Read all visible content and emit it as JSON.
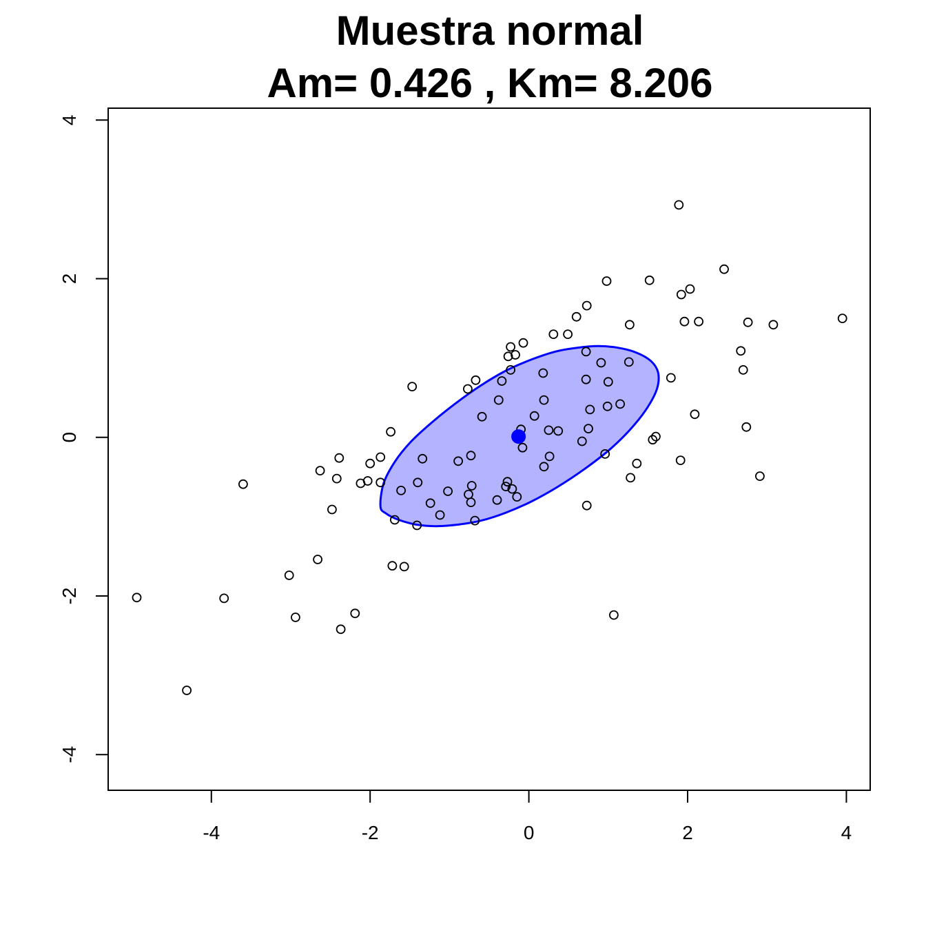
{
  "chart_data": {
    "type": "scatter",
    "title": "Muestra normal",
    "subtitle": "Am= 0.426 , Km= 8.206",
    "xlabel": "",
    "ylabel": "",
    "xlim": [
      -5.3,
      4.3
    ],
    "ylim": [
      -4.45,
      4.15
    ],
    "xticks": [
      -4,
      -2,
      0,
      2,
      4
    ],
    "yticks": [
      -4,
      -2,
      0,
      2,
      4
    ],
    "xtick_labels": [
      "-4",
      "-2",
      "0",
      "2",
      "4"
    ],
    "ytick_labels": [
      "-4",
      "-2",
      "0",
      "2",
      "4"
    ],
    "grid": false,
    "legend": "none",
    "colors": {
      "points": "#000000",
      "center": "#0000ff",
      "ellipse_fill": "#b3b3ff",
      "ellipse_stroke": "#0000ff"
    },
    "center": {
      "x": -0.13,
      "y": 0.01
    },
    "ellipse": [
      {
        "x": -1.87,
        "y": -0.87
      },
      {
        "x": -1.83,
        "y": -0.58
      },
      {
        "x": -1.69,
        "y": -0.31
      },
      {
        "x": -1.49,
        "y": -0.06
      },
      {
        "x": -1.22,
        "y": 0.19
      },
      {
        "x": -0.92,
        "y": 0.43
      },
      {
        "x": -0.61,
        "y": 0.65
      },
      {
        "x": -0.29,
        "y": 0.84
      },
      {
        "x": 0.03,
        "y": 0.98
      },
      {
        "x": 0.33,
        "y": 1.08
      },
      {
        "x": 0.61,
        "y": 1.13
      },
      {
        "x": 0.88,
        "y": 1.15
      },
      {
        "x": 1.12,
        "y": 1.13
      },
      {
        "x": 1.35,
        "y": 1.07
      },
      {
        "x": 1.54,
        "y": 0.96
      },
      {
        "x": 1.63,
        "y": 0.81
      },
      {
        "x": 1.61,
        "y": 0.6
      },
      {
        "x": 1.47,
        "y": 0.34
      },
      {
        "x": 1.26,
        "y": 0.08
      },
      {
        "x": 1.0,
        "y": -0.17
      },
      {
        "x": 0.7,
        "y": -0.4
      },
      {
        "x": 0.37,
        "y": -0.62
      },
      {
        "x": 0.03,
        "y": -0.81
      },
      {
        "x": -0.29,
        "y": -0.95
      },
      {
        "x": -0.6,
        "y": -1.05
      },
      {
        "x": -0.89,
        "y": -1.1
      },
      {
        "x": -1.17,
        "y": -1.12
      },
      {
        "x": -1.42,
        "y": -1.1
      },
      {
        "x": -1.64,
        "y": -1.04
      },
      {
        "x": -1.8,
        "y": -0.96
      }
    ],
    "points": [
      {
        "x": 1.89,
        "y": 2.93
      },
      {
        "x": 2.46,
        "y": 2.12
      },
      {
        "x": 0.98,
        "y": 1.97
      },
      {
        "x": 1.52,
        "y": 1.98
      },
      {
        "x": 2.03,
        "y": 1.87
      },
      {
        "x": 1.92,
        "y": 1.8
      },
      {
        "x": 0.73,
        "y": 1.66
      },
      {
        "x": 0.6,
        "y": 1.52
      },
      {
        "x": 3.95,
        "y": 1.5
      },
      {
        "x": 1.96,
        "y": 1.46
      },
      {
        "x": 2.14,
        "y": 1.46
      },
      {
        "x": 2.76,
        "y": 1.45
      },
      {
        "x": 1.27,
        "y": 1.42
      },
      {
        "x": 3.08,
        "y": 1.42
      },
      {
        "x": 0.31,
        "y": 1.3
      },
      {
        "x": 0.49,
        "y": 1.3
      },
      {
        "x": -0.07,
        "y": 1.19
      },
      {
        "x": -0.23,
        "y": 1.14
      },
      {
        "x": 0.72,
        "y": 1.08
      },
      {
        "x": 2.67,
        "y": 1.09
      },
      {
        "x": -0.26,
        "y": 1.02
      },
      {
        "x": -0.17,
        "y": 1.04
      },
      {
        "x": 0.91,
        "y": 0.94
      },
      {
        "x": 1.26,
        "y": 0.95
      },
      {
        "x": -0.23,
        "y": 0.85
      },
      {
        "x": 2.7,
        "y": 0.85
      },
      {
        "x": 0.18,
        "y": 0.81
      },
      {
        "x": 1.79,
        "y": 0.75
      },
      {
        "x": -0.67,
        "y": 0.72
      },
      {
        "x": -0.34,
        "y": 0.71
      },
      {
        "x": 0.72,
        "y": 0.73
      },
      {
        "x": 1.0,
        "y": 0.7
      },
      {
        "x": -1.47,
        "y": 0.64
      },
      {
        "x": -0.77,
        "y": 0.61
      },
      {
        "x": -0.38,
        "y": 0.47
      },
      {
        "x": 0.19,
        "y": 0.47
      },
      {
        "x": 0.99,
        "y": 0.39
      },
      {
        "x": 1.15,
        "y": 0.42
      },
      {
        "x": 0.77,
        "y": 0.35
      },
      {
        "x": -0.59,
        "y": 0.26
      },
      {
        "x": 0.07,
        "y": 0.27
      },
      {
        "x": 2.09,
        "y": 0.29
      },
      {
        "x": 2.74,
        "y": 0.13
      },
      {
        "x": 0.75,
        "y": 0.11
      },
      {
        "x": 0.25,
        "y": 0.09
      },
      {
        "x": 0.37,
        "y": 0.08
      },
      {
        "x": -1.74,
        "y": 0.07
      },
      {
        "x": -0.1,
        "y": 0.1
      },
      {
        "x": 1.56,
        "y": -0.03
      },
      {
        "x": 1.6,
        "y": 0.01
      },
      {
        "x": 0.67,
        "y": -0.05
      },
      {
        "x": -0.08,
        "y": -0.13
      },
      {
        "x": 0.96,
        "y": -0.21
      },
      {
        "x": -0.73,
        "y": -0.23
      },
      {
        "x": 0.26,
        "y": -0.24
      },
      {
        "x": -2.39,
        "y": -0.26
      },
      {
        "x": -1.87,
        "y": -0.25
      },
      {
        "x": -1.34,
        "y": -0.27
      },
      {
        "x": -0.89,
        "y": -0.3
      },
      {
        "x": 1.91,
        "y": -0.29
      },
      {
        "x": -2.0,
        "y": -0.33
      },
      {
        "x": 1.36,
        "y": -0.33
      },
      {
        "x": 0.19,
        "y": -0.37
      },
      {
        "x": -2.63,
        "y": -0.42
      },
      {
        "x": -2.42,
        "y": -0.52
      },
      {
        "x": -2.03,
        "y": -0.55
      },
      {
        "x": -1.87,
        "y": -0.57
      },
      {
        "x": -2.12,
        "y": -0.58
      },
      {
        "x": -3.6,
        "y": -0.59
      },
      {
        "x": -1.4,
        "y": -0.57
      },
      {
        "x": 1.28,
        "y": -0.51
      },
      {
        "x": 2.91,
        "y": -0.49
      },
      {
        "x": -0.27,
        "y": -0.56
      },
      {
        "x": -0.29,
        "y": -0.62
      },
      {
        "x": -0.72,
        "y": -0.61
      },
      {
        "x": -0.21,
        "y": -0.65
      },
      {
        "x": -1.61,
        "y": -0.67
      },
      {
        "x": -1.02,
        "y": -0.68
      },
      {
        "x": -0.76,
        "y": -0.72
      },
      {
        "x": -0.15,
        "y": -0.75
      },
      {
        "x": -0.4,
        "y": -0.79
      },
      {
        "x": -0.73,
        "y": -0.82
      },
      {
        "x": -1.24,
        "y": -0.83
      },
      {
        "x": 0.73,
        "y": -0.86
      },
      {
        "x": -2.48,
        "y": -0.91
      },
      {
        "x": -1.12,
        "y": -0.98
      },
      {
        "x": -1.69,
        "y": -1.04
      },
      {
        "x": -0.68,
        "y": -1.05
      },
      {
        "x": -1.41,
        "y": -1.11
      },
      {
        "x": -2.66,
        "y": -1.54
      },
      {
        "x": -1.72,
        "y": -1.62
      },
      {
        "x": -1.57,
        "y": -1.63
      },
      {
        "x": -3.02,
        "y": -1.74
      },
      {
        "x": -4.94,
        "y": -2.02
      },
      {
        "x": -3.84,
        "y": -2.03
      },
      {
        "x": -2.19,
        "y": -2.22
      },
      {
        "x": 1.07,
        "y": -2.24
      },
      {
        "x": -2.94,
        "y": -2.27
      },
      {
        "x": -2.37,
        "y": -2.42
      },
      {
        "x": -4.31,
        "y": -3.19
      }
    ]
  }
}
